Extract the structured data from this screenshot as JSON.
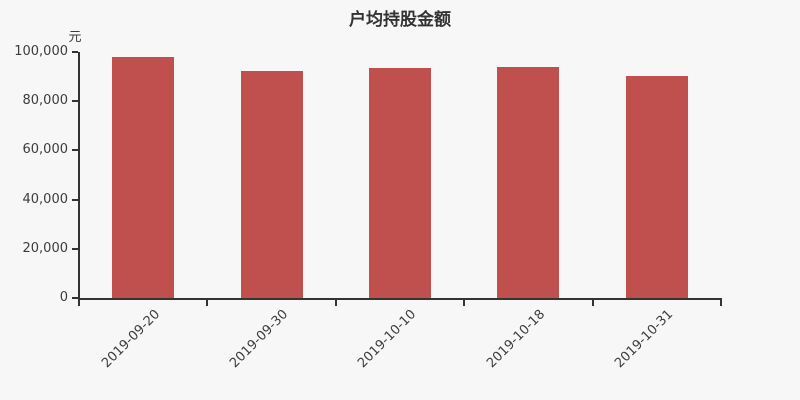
{
  "page": {
    "title": "户均持股金额",
    "unit_label": "元"
  },
  "colors": {
    "background": "#f7f7f7",
    "bar": "#c0504d",
    "axis": "#333333",
    "tick_text": "#3c3c3c",
    "title_text": "#333333"
  },
  "chart_data": {
    "type": "bar",
    "title": "户均持股金额",
    "xlabel": "",
    "ylabel": "元",
    "categories": [
      "2019-09-20",
      "2019-09-30",
      "2019-10-10",
      "2019-10-18",
      "2019-10-31"
    ],
    "values": [
      97900,
      92200,
      93300,
      94100,
      90300
    ],
    "ylim": [
      0,
      100000
    ],
    "y_ticks": [
      0,
      20000,
      40000,
      60000,
      80000,
      100000
    ],
    "y_tick_labels": [
      "0",
      "20,000",
      "40,000",
      "60,000",
      "80,000",
      "100,000"
    ],
    "grid": false,
    "legend": false,
    "x_tick_label_rotation_deg": 45
  }
}
